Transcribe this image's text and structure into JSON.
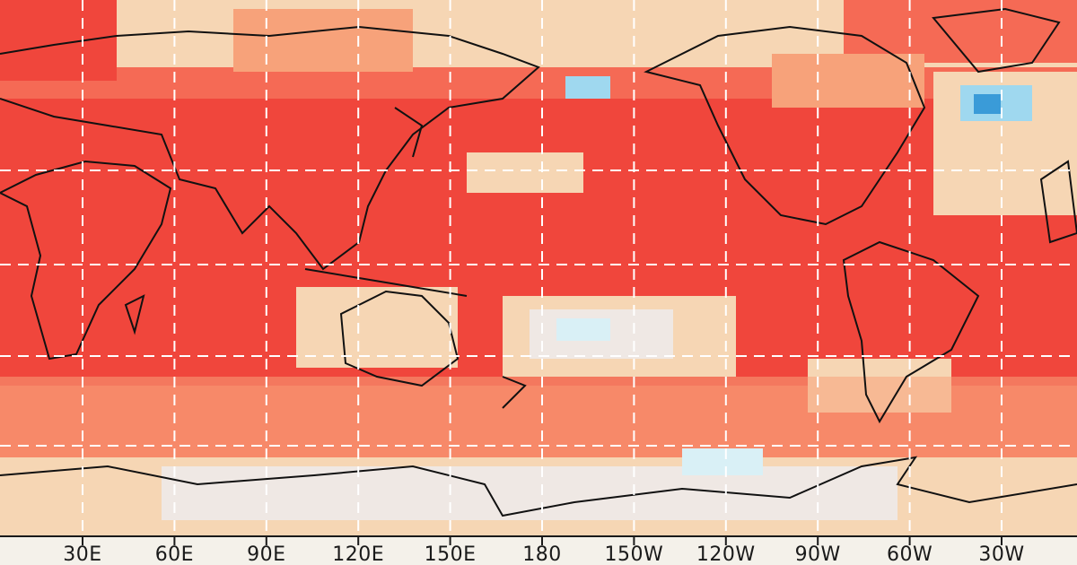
{
  "map": {
    "projection": "equirectangular, Pacific-centred (central meridian 180)",
    "variable_rendering": "gridded anomaly field, diverging red-white-blue scale",
    "colors": {
      "strong_warm": "#f0463c",
      "warm": "#f56a55",
      "moderate_warm": "#f7a27a",
      "weak_warm": "#f6d6b4",
      "neutral": "#efe8e4",
      "weak_cool": "#d9f0f6",
      "cool": "#9fd8ef",
      "strong_cool": "#3a9bd8",
      "gridline": "#ffffff",
      "coastline": "#111111"
    },
    "gridlines": "dashed",
    "x_axis": {
      "ticks": [
        "30E",
        "60E",
        "90E",
        "120E",
        "150E",
        "180",
        "150W",
        "120W",
        "90W",
        "60W",
        "30W"
      ]
    }
  }
}
